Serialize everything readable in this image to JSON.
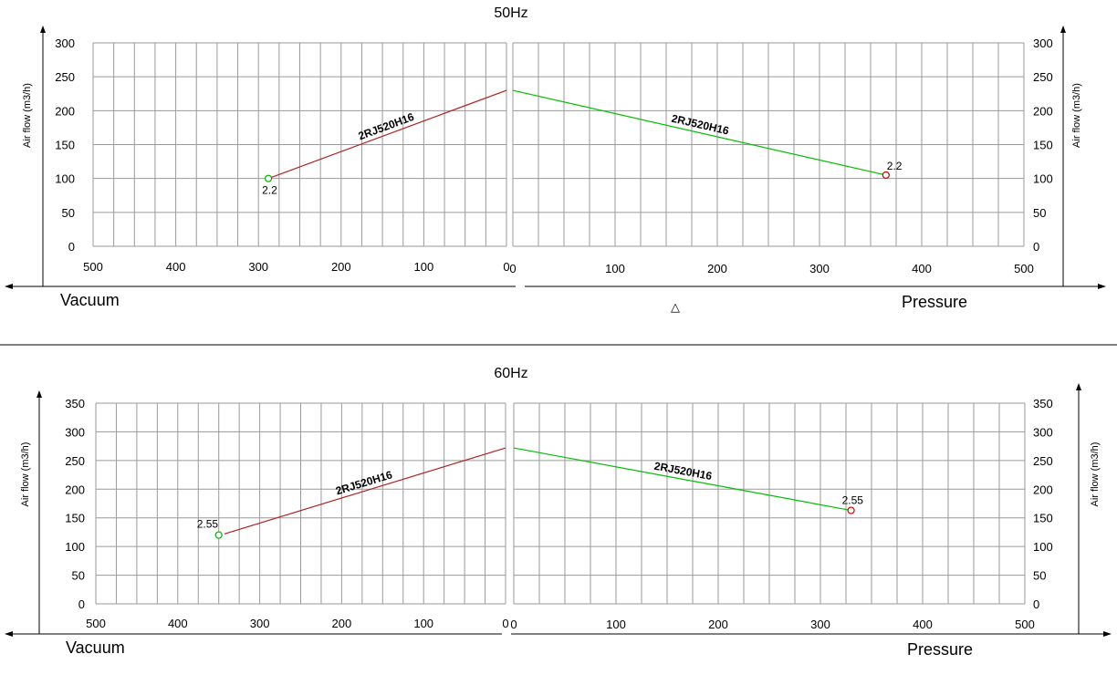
{
  "chart_data": [
    {
      "type": "line",
      "title": "50Hz",
      "ylabel": "Air flow (m3/h)",
      "left_label": "Vacuum",
      "right_label": "Pressure",
      "center_symbol": "△",
      "ylim": [
        0,
        300
      ],
      "yticks": [
        0,
        50,
        100,
        150,
        200,
        250,
        300
      ],
      "vacuum": {
        "xlim": [
          500,
          0
        ],
        "xticks": [
          500,
          400,
          300,
          200,
          100,
          0
        ],
        "series": [
          {
            "name": "2RJ520H16",
            "color": "#b22222",
            "points": [
              [
                288,
                100
              ],
              [
                0,
                230
              ]
            ]
          }
        ],
        "marker": {
          "x": 288,
          "y": 100,
          "label": "2.2",
          "color": "#00b000"
        }
      },
      "pressure": {
        "xlim": [
          0,
          500
        ],
        "xticks": [
          0,
          100,
          200,
          300,
          400,
          500
        ],
        "series": [
          {
            "name": "2RJ520H16",
            "color": "#00c000",
            "points": [
              [
                0,
                230
              ],
              [
                365,
                105
              ]
            ]
          }
        ],
        "marker": {
          "x": 365,
          "y": 105,
          "label": "2.2",
          "color": "#d00000"
        }
      }
    },
    {
      "type": "line",
      "title": "60Hz",
      "ylabel": "Air flow (m3/h)",
      "left_label": "Vacuum",
      "right_label": "Pressure",
      "ylim": [
        0,
        350
      ],
      "yticks": [
        0,
        50,
        100,
        150,
        200,
        250,
        300,
        350
      ],
      "vacuum": {
        "xlim": [
          500,
          0
        ],
        "xticks": [
          500,
          400,
          300,
          200,
          100,
          0
        ],
        "series": [
          {
            "name": "2RJ520H16",
            "color": "#b22222",
            "points": [
              [
                343,
                122
              ],
              [
                0,
                272
              ]
            ]
          }
        ],
        "marker": {
          "x": 350,
          "y": 120,
          "label": "2.55",
          "color": "#00b000"
        }
      },
      "pressure": {
        "xlim": [
          0,
          500
        ],
        "xticks": [
          0,
          100,
          200,
          300,
          400,
          500
        ],
        "series": [
          {
            "name": "2RJ520H16",
            "color": "#00c000",
            "points": [
              [
                0,
                272
              ],
              [
                330,
                163
              ]
            ]
          }
        ],
        "marker": {
          "x": 330,
          "y": 163,
          "label": "2.55",
          "color": "#d00000"
        }
      }
    }
  ]
}
